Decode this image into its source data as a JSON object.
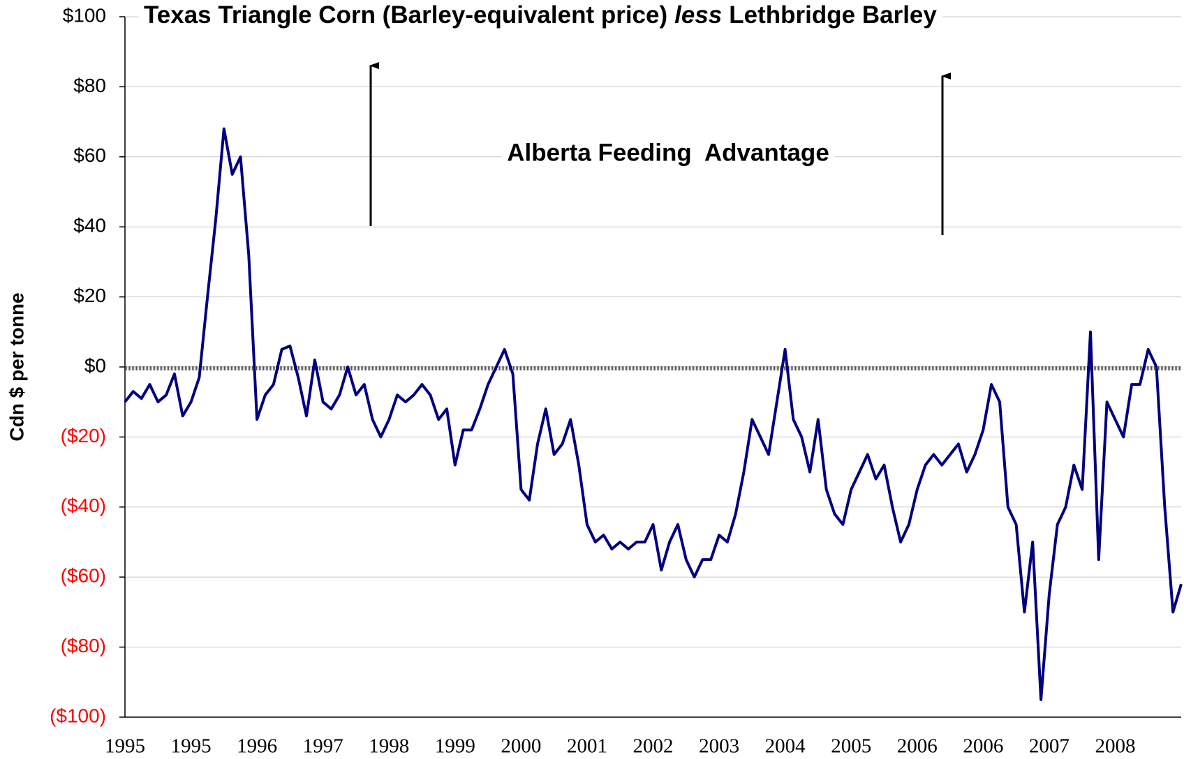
{
  "chart_data": {
    "type": "line",
    "title": {
      "before": "Texas Triangle Corn (Barley-equivalent price)",
      "italic": "less",
      "after": "Lethbridge Barley"
    },
    "ylabel": "Cdn $ per tonne",
    "annotation": "Alberta Feeding  Advantage",
    "categories": [
      "1995",
      null,
      null,
      null,
      null,
      null,
      null,
      null,
      "1995",
      null,
      null,
      null,
      null,
      null,
      null,
      null,
      "1996",
      null,
      null,
      null,
      null,
      null,
      null,
      null,
      "1997",
      null,
      null,
      null,
      null,
      null,
      null,
      null,
      "1998",
      null,
      null,
      null,
      null,
      null,
      null,
      null,
      "1999",
      null,
      null,
      null,
      null,
      null,
      null,
      null,
      "2000",
      null,
      null,
      null,
      null,
      null,
      null,
      null,
      "2001",
      null,
      null,
      null,
      null,
      null,
      null,
      null,
      "2002",
      null,
      null,
      null,
      null,
      null,
      null,
      null,
      "2003",
      null,
      null,
      null,
      null,
      null,
      null,
      null,
      "2004",
      null,
      null,
      null,
      null,
      null,
      null,
      null,
      "2005",
      null,
      null,
      null,
      null,
      null,
      null,
      null,
      "2006",
      null,
      null,
      null,
      null,
      null,
      null,
      null,
      "2006",
      null,
      null,
      null,
      null,
      null,
      null,
      null,
      "2007",
      null,
      null,
      null,
      null,
      null,
      null,
      null,
      "2008",
      null,
      null,
      null,
      null,
      null,
      null,
      null,
      null
    ],
    "series": [
      {
        "color": "#000080",
        "values": [
          -10,
          -7,
          -9,
          -5,
          -10,
          -8,
          -2,
          -14,
          -10,
          -3,
          20,
          42,
          68,
          55,
          60,
          32,
          -15,
          -8,
          -5,
          5,
          6,
          -3,
          -14,
          2,
          -10,
          -12,
          -8,
          0,
          -8,
          -5,
          -15,
          -20,
          -15,
          -8,
          -10,
          -8,
          -5,
          -8,
          -15,
          -12,
          -28,
          -18,
          -18,
          -12,
          -5,
          0,
          5,
          -2,
          -35,
          -38,
          -22,
          -12,
          -25,
          -22,
          -15,
          -28,
          -45,
          -50,
          -48,
          -52,
          -50,
          -52,
          -50,
          -50,
          -45,
          -58,
          -50,
          -45,
          -55,
          -60,
          -55,
          -55,
          -48,
          -50,
          -42,
          -30,
          -15,
          -20,
          -25,
          -10,
          5,
          -15,
          -20,
          -30,
          -15,
          -35,
          -42,
          -45,
          -35,
          -30,
          -25,
          -32,
          -28,
          -40,
          -50,
          -45,
          -35,
          -28,
          -25,
          -28,
          -25,
          -22,
          -30,
          -25,
          -18,
          -5,
          -10,
          -40,
          -45,
          -70,
          -50,
          -95,
          -65,
          -45,
          -40,
          -28,
          -35,
          10,
          -55,
          -10,
          -15,
          -20,
          -5,
          -5,
          5,
          0,
          -40,
          -70,
          -62
        ]
      }
    ],
    "ylim": [
      -100,
      100
    ],
    "yticks": [
      {
        "value": 100,
        "label": "$100"
      },
      {
        "value": 80,
        "label": "$80"
      },
      {
        "value": 60,
        "label": "$60"
      },
      {
        "value": 40,
        "label": "$40"
      },
      {
        "value": 20,
        "label": "$20"
      },
      {
        "value": 0,
        "label": "$0"
      },
      {
        "value": -20,
        "label": "($20)"
      },
      {
        "value": -40,
        "label": "($40)"
      },
      {
        "value": -60,
        "label": "($60)"
      },
      {
        "value": -80,
        "label": "($80)"
      },
      {
        "value": -100,
        "label": "($100)"
      }
    ],
    "negative_tick_color": "#ff0000",
    "grid": true
  }
}
